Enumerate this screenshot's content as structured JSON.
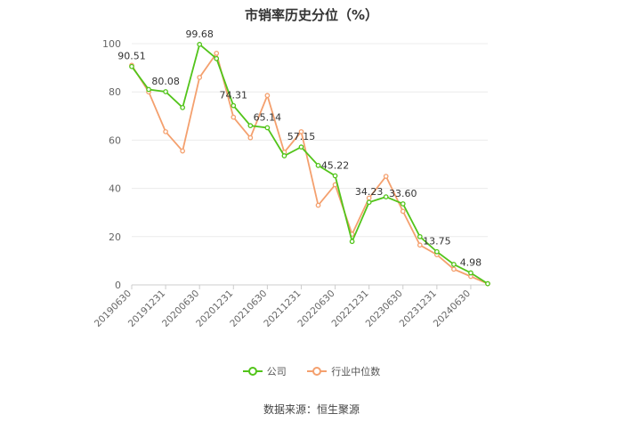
{
  "chart_data": {
    "type": "line",
    "title": "市销率历史分位（%）",
    "source": "数据来源：恒生聚源",
    "ylim": [
      0,
      100
    ],
    "yticks": [
      0,
      20,
      40,
      60,
      80,
      100
    ],
    "grid": true,
    "legend_position": "bottom",
    "x_tick_labels": [
      "20190630",
      "20191231",
      "20200630",
      "20201231",
      "20210630",
      "20211231",
      "20220630",
      "20221231",
      "20230630",
      "20231231",
      "20240630"
    ],
    "series": [
      {
        "name": "公司",
        "color": "#52c41a",
        "values": [
          90.51,
          81.0,
          80.08,
          73.5,
          99.68,
          93.8,
          74.31,
          66.0,
          65.14,
          53.5,
          57.15,
          49.5,
          45.22,
          18.0,
          34.23,
          36.5,
          33.6,
          20.0,
          13.75,
          8.5,
          4.98,
          0.5
        ],
        "labels": {
          "0": "90.51",
          "2": "80.08",
          "4": "99.68",
          "6": "74.31",
          "8": "65.14",
          "10": "57.15",
          "12": "45.22",
          "14": "34.23",
          "16": "33.60",
          "18": "13.75",
          "20": "4.98"
        }
      },
      {
        "name": "行业中位数",
        "color": "#f4a06e",
        "values": [
          91.0,
          80.0,
          63.5,
          55.5,
          86.0,
          96.0,
          69.5,
          61.0,
          78.5,
          55.0,
          63.5,
          33.0,
          41.5,
          21.0,
          36.0,
          45.0,
          30.5,
          16.5,
          12.5,
          6.5,
          3.5,
          0.5
        ]
      }
    ]
  }
}
